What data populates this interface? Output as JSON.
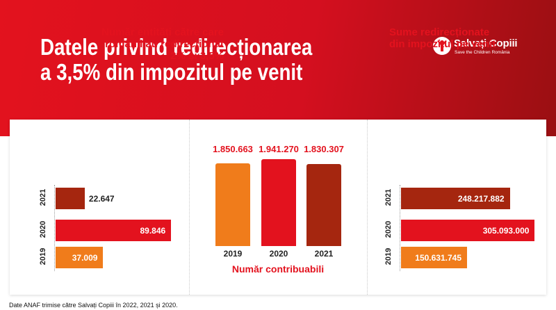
{
  "header": {
    "title_line1": "Datele privind redirecționarea",
    "title_line2": "a 3,5% din impozitul pe venit",
    "logo_name": "Salvați Copiii",
    "logo_subtitle": "Save the Children România"
  },
  "footnote": "Date ANAF trimise către Salvați Copiii în 2022, 2021 și 2020.",
  "colors": {
    "y2019": "#f07c1b",
    "y2020": "#e3121e",
    "y2021": "#a5260f",
    "accent": "#e3121e"
  },
  "chart_data": [
    {
      "type": "bar",
      "orientation": "horizontal",
      "title_lines": [
        "Număr entități către care",
        "românii au redirecționat",
        "2% și 3,5%"
      ],
      "categories": [
        "2021",
        "2020",
        "2019"
      ],
      "values": [
        22647,
        89846,
        37009
      ],
      "value_labels": [
        "22.647",
        "89.846",
        "37.009"
      ],
      "xlim": [
        0,
        100000
      ]
    },
    {
      "type": "bar",
      "orientation": "vertical",
      "xlabel": "Număr contribuabili",
      "categories": [
        "2019",
        "2020",
        "2021"
      ],
      "values": [
        1850663,
        1941270,
        1830307
      ],
      "value_labels": [
        "1.850.663",
        "1.941.270",
        "1.830.307"
      ],
      "ylim": [
        0,
        2050000
      ]
    },
    {
      "type": "bar",
      "orientation": "horizontal",
      "title_lines": [
        "Sume redirecționate",
        "din impozitul pe venit"
      ],
      "categories": [
        "2021",
        "2020",
        "2019"
      ],
      "values": [
        248217882,
        305093000,
        150631745
      ],
      "value_labels": [
        "248.217.882",
        "305.093.000",
        "150.631.745"
      ],
      "xlim": [
        0,
        325000000
      ]
    }
  ]
}
